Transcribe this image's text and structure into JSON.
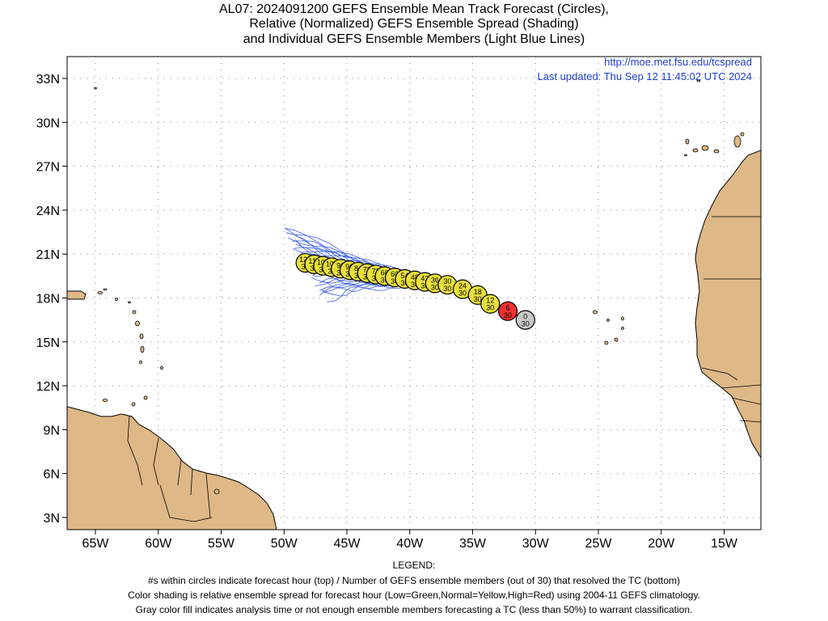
{
  "title": {
    "line1": "AL07: 2024091200 GEFS Ensemble Mean Track Forecast (Circles),",
    "line2": "Relative (Normalized) GEFS Ensemble Spread (Shading)",
    "line3": "and Individual GEFS Ensemble Members (Light Blue Lines)"
  },
  "credit": {
    "url": "http://moe.met.fsu.edu/tcspread",
    "updated": "Last updated: Thu Sep 12 11:45:02 UTC 2024"
  },
  "axes": {
    "lat_labels": [
      "33N",
      "30N",
      "27N",
      "24N",
      "21N",
      "18N",
      "15N",
      "12N",
      "9N",
      "6N",
      "3N"
    ],
    "lon_labels": [
      "65W",
      "60W",
      "55W",
      "50W",
      "45W",
      "40W",
      "35W",
      "30W",
      "25W",
      "20W",
      "15W"
    ]
  },
  "legend": {
    "header": "LEGEND:",
    "line1": "#s within circles indicate forecast hour (top) / Number of GEFS ensemble members (out of 30) that resolved the TC (bottom)",
    "line2": "Color shading is relative ensemble spread for forecast hour (Low=Green,Normal=Yellow,High=Red) using 2004-11 GEFS climatology.",
    "line3": "Gray color fill indicates analysis time or not enough ensemble members forecasting a TC (less than 50%) to warrant classification."
  },
  "colors": {
    "land": "#deb887",
    "member_track": "#3c5ee8",
    "normal_spread": "#e8e03a",
    "high_spread": "#ee3030",
    "analysis": "#c8c8c8"
  },
  "track_points": [
    {
      "hour": "0",
      "members": "30",
      "lon": -30.8,
      "lat": 16.5,
      "fill": "gray"
    },
    {
      "hour": "6",
      "members": "30",
      "lon": -32.2,
      "lat": 17.1,
      "fill": "red"
    },
    {
      "hour": "12",
      "members": "30",
      "lon": -33.6,
      "lat": 17.6,
      "fill": "yellow"
    },
    {
      "hour": "18",
      "members": "30",
      "lon": -34.6,
      "lat": 18.2,
      "fill": "yellow"
    },
    {
      "hour": "24",
      "members": "30",
      "lon": -35.8,
      "lat": 18.6,
      "fill": "yellow"
    },
    {
      "hour": "30",
      "members": "30",
      "lon": -37.0,
      "lat": 18.9,
      "fill": "yellow"
    },
    {
      "hour": "36",
      "members": "30",
      "lon": -38.0,
      "lat": 19.0,
      "fill": "yellow"
    },
    {
      "hour": "42",
      "members": "30",
      "lon": -38.8,
      "lat": 19.1,
      "fill": "yellow"
    },
    {
      "hour": "48",
      "members": "30",
      "lon": -39.6,
      "lat": 19.2,
      "fill": "yellow"
    },
    {
      "hour": "54",
      "members": "30",
      "lon": -40.4,
      "lat": 19.3,
      "fill": "yellow"
    },
    {
      "hour": "60",
      "members": "30",
      "lon": -41.2,
      "lat": 19.4,
      "fill": "yellow"
    },
    {
      "hour": "66",
      "members": "30",
      "lon": -42.0,
      "lat": 19.5,
      "fill": "yellow"
    },
    {
      "hour": "72",
      "members": "30",
      "lon": -42.7,
      "lat": 19.6,
      "fill": "yellow"
    },
    {
      "hour": "78",
      "members": "30",
      "lon": -43.4,
      "lat": 19.7,
      "fill": "yellow"
    },
    {
      "hour": "84",
      "members": "30",
      "lon": -44.1,
      "lat": 19.8,
      "fill": "yellow"
    },
    {
      "hour": "90",
      "members": "30",
      "lon": -44.8,
      "lat": 19.9,
      "fill": "yellow"
    },
    {
      "hour": "96",
      "members": "30",
      "lon": -45.5,
      "lat": 20.0,
      "fill": "yellow"
    },
    {
      "hour": "102",
      "members": "30",
      "lon": -46.2,
      "lat": 20.1,
      "fill": "yellow"
    },
    {
      "hour": "108",
      "members": "30",
      "lon": -46.9,
      "lat": 20.2,
      "fill": "yellow"
    },
    {
      "hour": "114",
      "members": "30",
      "lon": -47.6,
      "lat": 20.3,
      "fill": "yellow"
    },
    {
      "hour": "120",
      "members": "30",
      "lon": -48.3,
      "lat": 20.4,
      "fill": "yellow"
    }
  ]
}
